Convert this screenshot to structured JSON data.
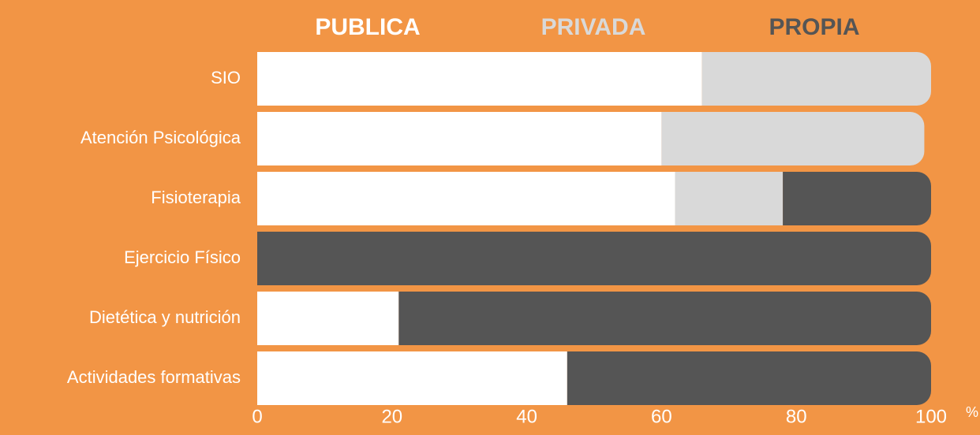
{
  "chart_data": {
    "type": "stacked-bar-horizontal",
    "categories": [
      "SIO",
      "Atención Psicológica",
      "Fisioterapia",
      "Ejercicio Físico",
      "Dietética y nutrición",
      "Actividades formativas"
    ],
    "series": [
      {
        "name": "PUBLICA",
        "color": "#ffffff",
        "values": [
          66,
          60,
          62,
          0,
          21,
          46
        ]
      },
      {
        "name": "PRIVADA",
        "color": "#d9d9d9",
        "values": [
          34,
          39,
          16,
          0,
          0,
          0
        ]
      },
      {
        "name": "PROPIA",
        "color": "#555555",
        "values": [
          0,
          0,
          22,
          100,
          79,
          54
        ]
      }
    ],
    "xlim": [
      0,
      100
    ],
    "xticks": [
      0,
      20,
      40,
      60,
      80,
      100
    ],
    "x_label": "%",
    "grid": false
  }
}
